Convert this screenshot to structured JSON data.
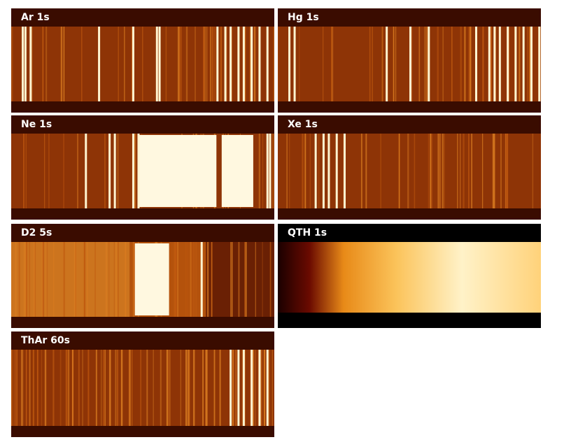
{
  "panels": [
    {
      "label": "Ar 1s"
    },
    {
      "label": "Hg 1s"
    },
    {
      "label": "Ne 1s"
    },
    {
      "label": "Xe 1s"
    },
    {
      "label": "D2 5s"
    },
    {
      "label": "QTH 1s"
    },
    {
      "label": "ThAr 60s"
    }
  ]
}
